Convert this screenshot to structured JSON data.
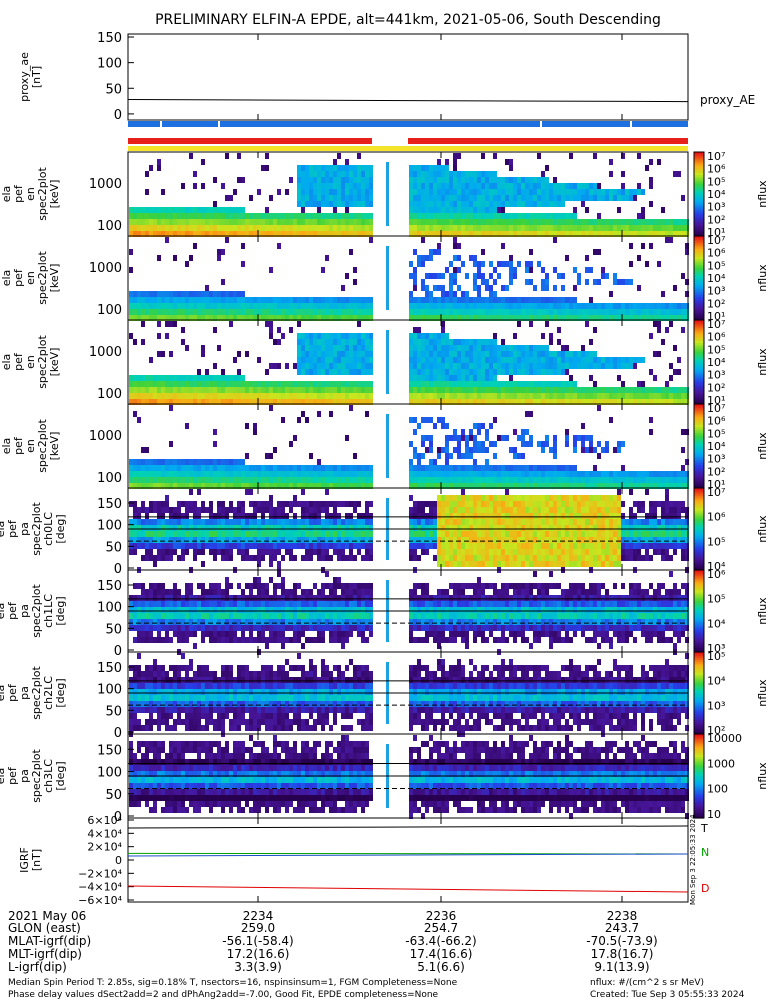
{
  "title": "PRELIMINARY ELFIN-A EPDE, alt=441km, 2021-05-06, South Descending",
  "colors": {
    "red_bar": "#e8201c",
    "blue_bar": "#1e6fe0",
    "yellow_bar": "#f4e52a",
    "bx": "#0030c8",
    "by": "#00a000",
    "bz": "#e00000"
  },
  "colorbar_label": "nflux",
  "panels": [
    {
      "id": "proxy_ae",
      "ylabel": [
        "proxy_ae",
        "[nT]"
      ],
      "yticks": [
        "150",
        "100",
        "50",
        "0"
      ],
      "right_label": "proxy_AE"
    },
    {
      "id": "en1",
      "ylabel": [
        "ela",
        "pef",
        "en",
        "spec2plot",
        "[keV]"
      ],
      "yticks": [
        "1000",
        "100"
      ],
      "cbar_ticks": [
        "10⁷",
        "10⁶",
        "10⁵",
        "10⁴",
        "10³",
        "10²",
        "10¹"
      ]
    },
    {
      "id": "en2",
      "ylabel": [
        "ela",
        "pef",
        "en",
        "spec2plot",
        "[keV]"
      ],
      "yticks": [
        "1000",
        "100"
      ],
      "cbar_ticks": [
        "10⁷",
        "10⁶",
        "10⁵",
        "10⁴",
        "10³",
        "10²",
        "10¹"
      ]
    },
    {
      "id": "en3",
      "ylabel": [
        "ela",
        "pef",
        "en",
        "spec2plot",
        "[keV]"
      ],
      "yticks": [
        "1000",
        "100"
      ],
      "cbar_ticks": [
        "10⁷",
        "10⁶",
        "10⁵",
        "10⁴",
        "10³",
        "10²",
        "10¹"
      ]
    },
    {
      "id": "en4",
      "ylabel": [
        "ela",
        "pef",
        "en",
        "spec2plot",
        "[keV]"
      ],
      "yticks": [
        "1000",
        "100"
      ],
      "cbar_ticks": [
        "10⁷",
        "10⁶",
        "10⁵",
        "10⁴",
        "10³",
        "10²",
        "10¹"
      ]
    },
    {
      "id": "pa0",
      "ylabel": [
        "ela",
        "pef",
        "pa",
        "spec2plot",
        "ch0LC",
        "[deg]"
      ],
      "yticks": [
        "150",
        "100",
        "50",
        "0"
      ],
      "cbar_ticks": [
        "10⁷",
        "10⁶",
        "10⁵",
        "10⁴"
      ]
    },
    {
      "id": "pa1",
      "ylabel": [
        "ela",
        "pef",
        "pa",
        "spec2plot",
        "ch1LC",
        "[deg]"
      ],
      "yticks": [
        "150",
        "100",
        "50",
        "0"
      ],
      "cbar_ticks": [
        "10⁶",
        "10⁵",
        "10⁴",
        "10³"
      ]
    },
    {
      "id": "pa2",
      "ylabel": [
        "ela",
        "pef",
        "pa",
        "spec2plot",
        "ch2LC",
        "[deg]"
      ],
      "yticks": [
        "150",
        "100",
        "50",
        "0"
      ],
      "cbar_ticks": [
        "10⁵",
        "10⁴",
        "10³",
        "10²"
      ]
    },
    {
      "id": "pa3",
      "ylabel": [
        "ela",
        "pef",
        "pa",
        "spec2plot",
        "ch3LC",
        "[deg]"
      ],
      "yticks": [
        "150",
        "100",
        "50",
        "0"
      ],
      "cbar_ticks": [
        "10000",
        "1000",
        "100",
        "10"
      ]
    },
    {
      "id": "igrf",
      "ylabel": [
        "IGRF",
        "[nT]"
      ],
      "yticks": [
        "6×10⁴",
        "4×10⁴",
        "2×10⁴",
        "0",
        "−2×10⁴",
        "−4×10⁴",
        "−6×10⁴"
      ],
      "legend": [
        "T",
        "N",
        "D"
      ]
    }
  ],
  "side_stamp": "Mon Sep 3 22:05:33 2024",
  "footer": {
    "left_labels": [
      "2021 May 06",
      "GLON (east)",
      "MLAT-igrf(dip)",
      "MLT-igrf(dip)",
      "L-igrf(dip)"
    ],
    "columns": [
      {
        "time": "2234",
        "values": [
          "259.0",
          "-56.1(-58.4)",
          "17.2(16.6)",
          "3.3(3.9)"
        ]
      },
      {
        "time": "2236",
        "values": [
          "254.7",
          "-63.4(-66.2)",
          "17.4(16.6)",
          "5.1(6.6)"
        ]
      },
      {
        "time": "2238",
        "values": [
          "243.7",
          "-70.5(-73.9)",
          "17.8(16.7)",
          "9.1(13.9)"
        ]
      }
    ],
    "note1": "Median Spin Period T: 2.85s, sig=0.18% T, nsectors=16, nspinsinsum=1, FGM Completeness=None",
    "note2": "Phase delay values dSect2add=2 and dPhAng2add=-7.00, Good Fit, EPDE completeness=None",
    "units": "nflux: #/(cm^2 s sr MeV)",
    "created": "Created: Tue Sep  3 05:55:33 2024"
  },
  "chart_data": {
    "type": "heatmap",
    "title": "PRELIMINARY ELFIN-A EPDE, alt=441km, 2021-05-06, South Descending",
    "x_ticks": [
      "2234",
      "2236",
      "2238"
    ],
    "proxy_ae": {
      "ylim": [
        0,
        160
      ],
      "ylabel": "proxy_ae [nT]",
      "value_start": 28,
      "value_end": 24
    },
    "energy_panels": {
      "yscale": "log",
      "ylabel": "[keV]",
      "ylim_keV": [
        60,
        7000
      ],
      "colorbar": "nflux",
      "cbar_range": [
        "10¹",
        "10⁷"
      ]
    },
    "pitch_angle_panels": {
      "ylabel": "[deg]",
      "ylim": [
        0,
        180
      ],
      "channels": [
        "ch0LC",
        "ch1LC",
        "ch2LC",
        "ch3LC"
      ],
      "reference_lines_deg": [
        62,
        90,
        118
      ]
    },
    "igrf": {
      "ylabel": "IGRF [nT]",
      "ylim": [
        -60000,
        60000
      ],
      "series": [
        {
          "name": "T",
          "values": [
            48000,
            51000
          ]
        },
        {
          "name": "N",
          "values": [
            10000,
            9000
          ]
        },
        {
          "name": "D",
          "values": [
            -39000,
            -48000
          ]
        }
      ]
    }
  }
}
